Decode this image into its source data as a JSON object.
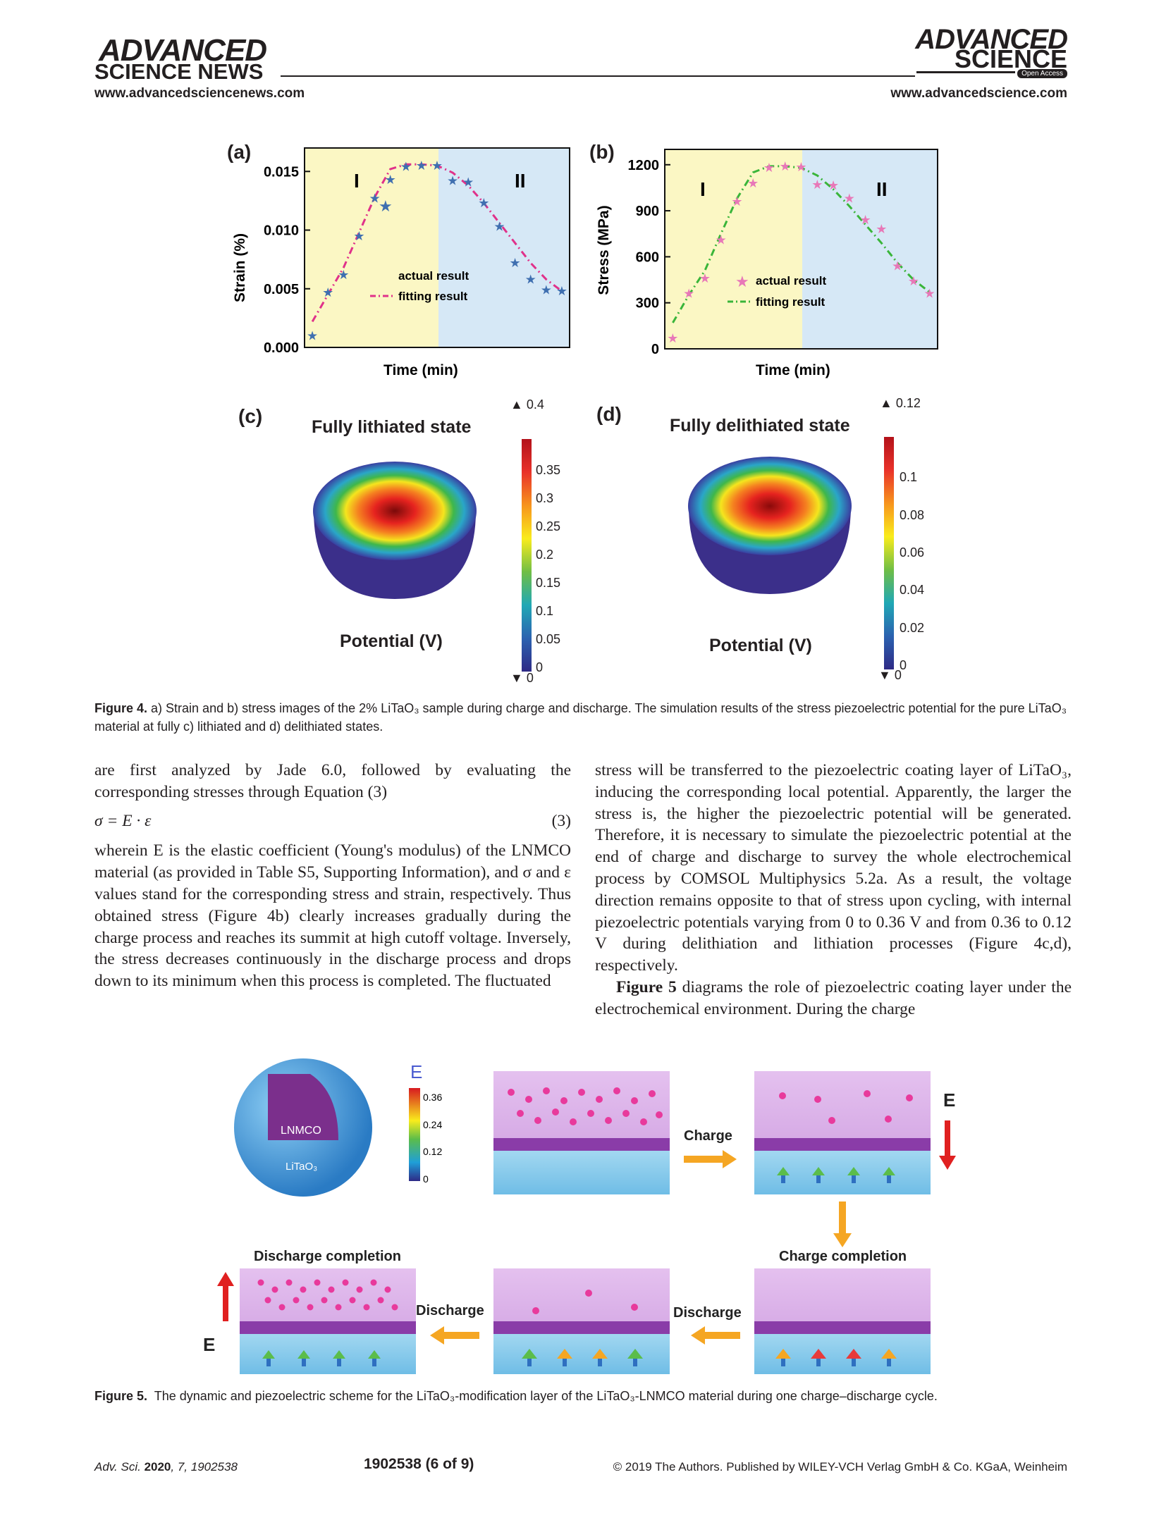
{
  "header": {
    "left_logo_line1": "ADVANCED",
    "left_logo_line2": "SCIENCE NEWS",
    "left_url": "www.advancedsciencenews.com",
    "right_logo_line1": "ADVANCED",
    "right_logo_line2": "SCIENCE",
    "right_badge": "Open Access",
    "right_url": "www.advancedscience.com"
  },
  "figure4": {
    "panel_a_label": "(a)",
    "panel_b_label": "(b)",
    "panel_c_label": "(c)",
    "panel_d_label": "(d)",
    "panel_c_title": "Fully lithiated state",
    "panel_d_title": "Fully delithiated state",
    "potential_label_c": "Potential (V)",
    "potential_label_d": "Potential (V)",
    "colorbar_c_max": "0.4",
    "colorbar_c_min": "0",
    "colorbar_c_ticks": [
      "0.35",
      "0.3",
      "0.25",
      "0.2",
      "0.15",
      "0.1",
      "0.05",
      "0"
    ],
    "colorbar_d_max": "0.12",
    "colorbar_d_min": "0",
    "colorbar_d_ticks": [
      "0.1",
      "0.08",
      "0.06",
      "0.04",
      "0.02",
      "0"
    ],
    "caption_label": "Figure 4.",
    "caption_text": "a) Strain and b) stress images of the 2% LiTaO₃ sample during charge and discharge. The simulation results of the stress piezoelectric potential for the pure LiTaO₃ material at fully c) lithiated and d) delithiated states."
  },
  "chart_data": [
    {
      "type": "scatter",
      "panel": "(a)",
      "xlabel": "Time (min)",
      "ylabel": "Strain (%)",
      "ylim": [
        0,
        0.017
      ],
      "yticks": [
        "0.015",
        "0.010",
        "0.005",
        "0.000"
      ],
      "region_labels": [
        "I",
        "II"
      ],
      "region_colors": [
        "#fbf7c4",
        "#d6e8f6"
      ],
      "series": [
        {
          "name": "actual result",
          "color": "#3f6fb0",
          "marker": "star",
          "x": [
            1,
            2,
            3,
            4,
            5,
            6,
            7,
            8,
            9,
            10,
            11,
            12,
            13,
            14,
            15,
            16,
            17
          ],
          "y": [
            0.001,
            0.0047,
            0.0062,
            0.0095,
            0.0127,
            0.0143,
            0.0154,
            0.0155,
            0.0155,
            0.0142,
            0.0141,
            0.0123,
            0.0103,
            0.0072,
            0.0058,
            0.0049,
            0.0048
          ]
        },
        {
          "name": "fitting result",
          "color": "#e0318a",
          "style": "dash-dot",
          "x": [
            1,
            2,
            3,
            4,
            5,
            6,
            7,
            8,
            9,
            10,
            11,
            12,
            13,
            14,
            15,
            16,
            17
          ],
          "y": [
            0.0022,
            0.0045,
            0.0068,
            0.0098,
            0.0128,
            0.0152,
            0.0156,
            0.0156,
            0.0155,
            0.0149,
            0.0138,
            0.0123,
            0.0106,
            0.0089,
            0.0072,
            0.0058,
            0.0048
          ]
        }
      ]
    },
    {
      "type": "scatter",
      "panel": "(b)",
      "xlabel": "Time (min)",
      "ylabel": "Stress (MPa)",
      "ylim": [
        0,
        1300
      ],
      "yticks": [
        "1200",
        "900",
        "600",
        "300",
        "0"
      ],
      "region_labels": [
        "I",
        "II"
      ],
      "region_colors": [
        "#fbf7c4",
        "#d6e8f6"
      ],
      "series": [
        {
          "name": "actual result",
          "color": "#e878b8",
          "marker": "star",
          "x": [
            1,
            2,
            3,
            4,
            5,
            6,
            7,
            8,
            9,
            10,
            11,
            12,
            13,
            14,
            15,
            16,
            17
          ],
          "y": [
            70,
            360,
            460,
            710,
            960,
            1080,
            1180,
            1190,
            1185,
            1070,
            1065,
            980,
            840,
            780,
            540,
            440,
            360
          ]
        },
        {
          "name": "fitting result",
          "color": "#3ab53a",
          "style": "dash-dot",
          "x": [
            1,
            2,
            3,
            4,
            5,
            6,
            7,
            8,
            9,
            10,
            11,
            12,
            13,
            14,
            15,
            16,
            17
          ],
          "y": [
            170,
            350,
            510,
            750,
            980,
            1150,
            1190,
            1190,
            1180,
            1130,
            1040,
            930,
            810,
            690,
            560,
            450,
            370
          ]
        }
      ]
    }
  ],
  "body": {
    "left_col_p1": "are first analyzed by Jade 6.0, followed by evaluating the corresponding stresses through Equation (3)",
    "equation": "σ = E · ε",
    "equation_number": "(3)",
    "left_col_p2": "wherein E is the elastic coefficient (Young's modulus) of the LNMCO material (as provided in Table S5, Supporting Information), and σ and ε values stand for the corresponding stress and strain, respectively. Thus obtained stress (Figure 4b) clearly increases gradually during the charge process and reaches its summit at high cutoff voltage. Inversely, the stress decreases continuously in the discharge process and drops down to its minimum when this process is completed. The fluctuated",
    "right_col_p1": "stress will be transferred to the piezoelectric coating layer of LiTaO₃, inducing the corresponding local potential. Apparently, the larger the stress is, the higher the piezoelectric potential will be generated. Therefore, it is necessary to simulate the piezoelectric potential at the end of charge and discharge to survey the whole electrochemical process by COMSOL Multiphysics 5.2a. As a result, the voltage direction remains opposite to that of stress upon cycling, with internal piezoelectric potentials varying from 0 to 0.36 V and from 0.36 to 0.12 V during delithiation and lithiation processes (Figure 4c,d), respectively.",
    "right_col_p2_bold": "Figure 5",
    "right_col_p2": " diagrams the role of piezoelectric coating layer under the electrochemical environment. During the charge"
  },
  "figure5": {
    "e_label": "E",
    "colorbar_ticks": [
      "0.36",
      "0.24",
      "0.12",
      "0"
    ],
    "lnmco_label": "LNMCO",
    "litao_label": "LiTaO₃",
    "charge_label": "Charge",
    "field_label": "E",
    "charge_completion": "Charge completion",
    "discharge_label_1": "Discharge",
    "discharge_label_2": "Discharge",
    "discharge_completion": "Discharge completion",
    "field_label_2": "E",
    "caption_label": "Figure 5.",
    "caption_text": "The dynamic and piezoelectric scheme for the LiTaO₃-modification layer of the LiTaO₃-LNMCO material during one charge–discharge cycle."
  },
  "footer": {
    "journal": "Adv. Sci.",
    "year": "2020",
    "volume_info": ", 7, 1902538",
    "page": "1902538  (6 of 9)",
    "copyright": "© 2019 The Authors. Published by WILEY-VCH Verlag GmbH & Co. KGaA, Weinheim"
  }
}
